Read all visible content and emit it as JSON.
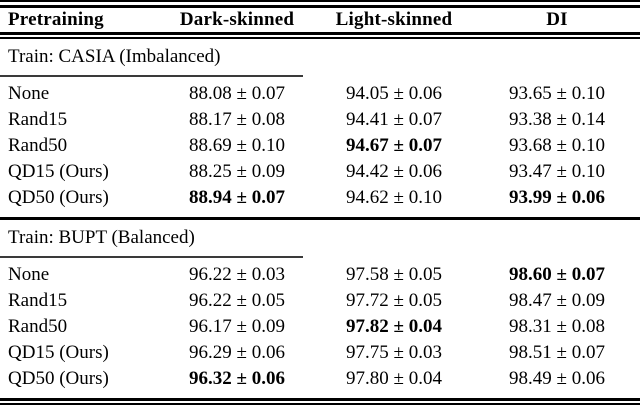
{
  "table": {
    "columns": [
      {
        "key": "pretraining",
        "label": "Pretraining"
      },
      {
        "key": "dark-skinned",
        "label": "Dark-skinned"
      },
      {
        "key": "light-skinned",
        "label": "Light-skinned"
      },
      {
        "key": "di",
        "label": "DI"
      }
    ],
    "sections": [
      {
        "title": "Train: CASIA (Imbalanced)",
        "rows": [
          {
            "label": "None",
            "cells": [
              {
                "text": "88.08 ± 0.07",
                "bold": false
              },
              {
                "text": "94.05 ± 0.06",
                "bold": false
              },
              {
                "text": "93.65 ± 0.10",
                "bold": false
              }
            ]
          },
          {
            "label": "Rand15",
            "cells": [
              {
                "text": "88.17 ± 0.08",
                "bold": false
              },
              {
                "text": "94.41 ± 0.07",
                "bold": false
              },
              {
                "text": "93.38 ± 0.14",
                "bold": false
              }
            ]
          },
          {
            "label": "Rand50",
            "cells": [
              {
                "text": "88.69 ± 0.10",
                "bold": false
              },
              {
                "text": "94.67 ± 0.07",
                "bold": true
              },
              {
                "text": "93.68 ± 0.10",
                "bold": false
              }
            ]
          },
          {
            "label": "QD15 (Ours)",
            "cells": [
              {
                "text": "88.25 ± 0.09",
                "bold": false
              },
              {
                "text": "94.42 ± 0.06",
                "bold": false
              },
              {
                "text": "93.47 ± 0.10",
                "bold": false
              }
            ]
          },
          {
            "label": "QD50 (Ours)",
            "cells": [
              {
                "text": "88.94 ± 0.07",
                "bold": true
              },
              {
                "text": "94.62 ± 0.10",
                "bold": false
              },
              {
                "text": "93.99 ± 0.06",
                "bold": true
              }
            ]
          }
        ]
      },
      {
        "title": "Train: BUPT (Balanced)",
        "rows": [
          {
            "label": "None",
            "cells": [
              {
                "text": "96.22 ± 0.03",
                "bold": false
              },
              {
                "text": "97.58 ± 0.05",
                "bold": false
              },
              {
                "text": "98.60 ± 0.07",
                "bold": true
              }
            ]
          },
          {
            "label": "Rand15",
            "cells": [
              {
                "text": "96.22 ± 0.05",
                "bold": false
              },
              {
                "text": "97.72 ± 0.05",
                "bold": false
              },
              {
                "text": "98.47 ± 0.09",
                "bold": false
              }
            ]
          },
          {
            "label": "Rand50",
            "cells": [
              {
                "text": "96.17 ± 0.09",
                "bold": false
              },
              {
                "text": "97.82 ± 0.04",
                "bold": true
              },
              {
                "text": "98.31 ± 0.08",
                "bold": false
              }
            ]
          },
          {
            "label": "QD15 (Ours)",
            "cells": [
              {
                "text": "96.29 ± 0.06",
                "bold": false
              },
              {
                "text": "97.75 ± 0.03",
                "bold": false
              },
              {
                "text": "98.51 ± 0.07",
                "bold": false
              }
            ]
          },
          {
            "label": "QD50 (Ours)",
            "cells": [
              {
                "text": "96.32 ± 0.06",
                "bold": true
              },
              {
                "text": "97.80 ± 0.04",
                "bold": false
              },
              {
                "text": "98.49 ± 0.06",
                "bold": false
              }
            ]
          }
        ]
      }
    ]
  },
  "colors": {
    "text": "#000000",
    "rule": "#000000",
    "partial_rule": "#3a3a3a",
    "background": "#ffffff"
  }
}
